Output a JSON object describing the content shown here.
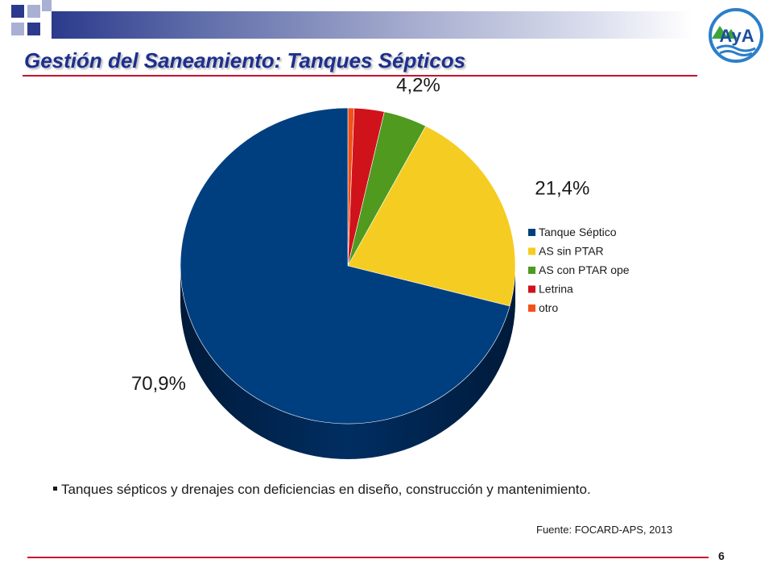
{
  "slide": {
    "title": "Gestión del Saneamiento: Tanques Sépticos",
    "bullet": "Tanques sépticos y drenajes con deficiencias en diseño, construcción y mantenimiento.",
    "source": "Fuente:  FOCARD-APS,  2013",
    "page_number": "6",
    "logo_text": "AyA"
  },
  "colors": {
    "title": "#1d2f8f",
    "rule": "#c8102e",
    "decor_square": "#2b3a8c"
  },
  "chart_data": {
    "type": "pie",
    "categories": [
      "Tanque Séptico",
      "AS sin PTAR",
      "AS con PTAR ope",
      "Letrina",
      "otro"
    ],
    "values": [
      70.9,
      21.4,
      4.2,
      2.9,
      0.6
    ],
    "data_labels": [
      "70,9%",
      "21,4%",
      "4,2%",
      "",
      ""
    ],
    "colors": [
      "#003f7f",
      "#f5cc22",
      "#4f9a1f",
      "#d0121b",
      "#f0521a"
    ],
    "legend_position": "right"
  }
}
